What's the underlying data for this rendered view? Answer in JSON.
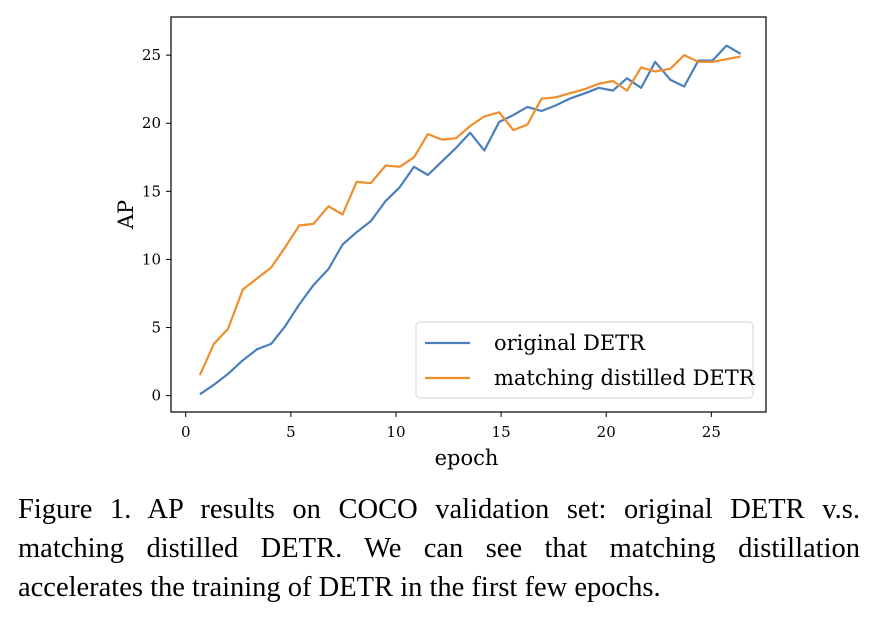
{
  "chart_data": {
    "type": "line",
    "xlabel": "epoch",
    "ylabel": "AP",
    "xlim": [
      -0.7,
      27.6
    ],
    "ylim": [
      -1.2,
      27.8
    ],
    "xticks": [
      0,
      5,
      10,
      15,
      20,
      25
    ],
    "yticks": [
      0,
      5,
      10,
      15,
      20,
      25
    ],
    "grid": false,
    "legend_position": "lower-right",
    "x": [
      0.67,
      1.34,
      2.01,
      2.72,
      3.39,
      4.06,
      4.73,
      5.4,
      6.07,
      6.79,
      7.46,
      8.13,
      8.8,
      9.51,
      10.18,
      10.86,
      11.52,
      12.19,
      12.86,
      13.53,
      14.2,
      14.91,
      15.58,
      16.25,
      16.92,
      17.59,
      18.26,
      18.98,
      19.65,
      20.32,
      20.99,
      21.66,
      22.33,
      23.05,
      23.71,
      24.38,
      25.05,
      25.72,
      26.39
    ],
    "series": [
      {
        "name": "original DETR",
        "color": "#4a7fbc",
        "values": [
          0.1,
          0.8,
          1.6,
          2.6,
          3.4,
          3.8,
          5.1,
          6.7,
          8.1,
          9.3,
          11.1,
          12.0,
          12.8,
          14.3,
          15.3,
          16.8,
          16.2,
          17.2,
          18.2,
          19.3,
          18.0,
          20.1,
          20.6,
          21.2,
          20.9,
          21.3,
          21.8,
          22.2,
          22.6,
          22.4,
          23.3,
          22.6,
          24.5,
          23.2,
          22.7,
          24.6,
          24.6,
          25.7,
          25.1
        ]
      },
      {
        "name": "matching distilled DETR",
        "color": "#ee8f2b",
        "values": [
          1.5,
          3.8,
          4.9,
          7.8,
          8.6,
          9.4,
          10.9,
          12.5,
          12.6,
          13.9,
          13.3,
          15.7,
          15.6,
          16.9,
          16.8,
          17.5,
          19.2,
          18.8,
          18.9,
          19.8,
          20.5,
          20.8,
          19.5,
          19.9,
          21.8,
          21.9,
          22.2,
          22.5,
          22.9,
          23.1,
          22.4,
          24.1,
          23.8,
          24.0,
          25.0,
          24.5,
          24.5,
          24.7,
          24.9
        ]
      }
    ]
  },
  "caption": "Figure 1. AP results on COCO validation set: original DETR v.s. matching distilled DETR. We can see that matching distillation accelerates the training of DETR in the first few epochs."
}
